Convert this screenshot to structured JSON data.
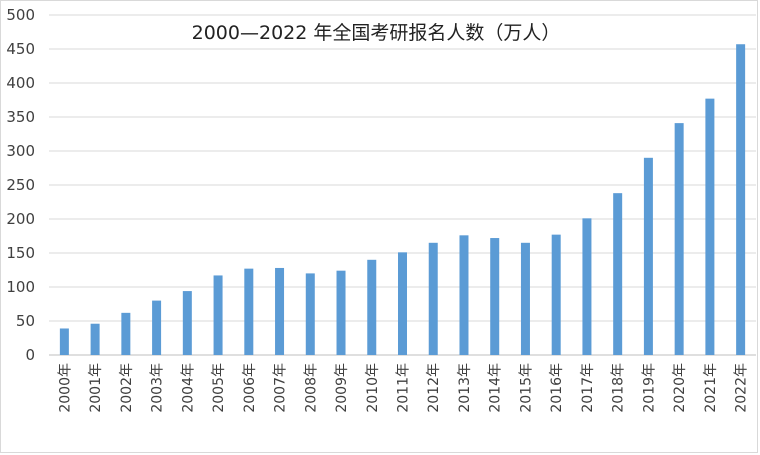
{
  "chart_data": {
    "type": "bar",
    "title": "2000—2022 年全国考研报名人数（万人）",
    "xlabel": "",
    "ylabel": "",
    "ylim": [
      0,
      500
    ],
    "yticks": [
      0,
      50,
      100,
      150,
      200,
      250,
      300,
      350,
      400,
      450,
      500
    ],
    "grid": true,
    "legend": "none",
    "bar_color": "#5b9bd5",
    "categories": [
      "2000年",
      "2001年",
      "2002年",
      "2003年",
      "2004年",
      "2005年",
      "2006年",
      "2007年",
      "2008年",
      "2009年",
      "2010年",
      "2011年",
      "2012年",
      "2013年",
      "2014年",
      "2015年",
      "2016年",
      "2017年",
      "2018年",
      "2019年",
      "2020年",
      "2021年",
      "2022年"
    ],
    "values": [
      39,
      46,
      62,
      80,
      94,
      117,
      127,
      128,
      120,
      124,
      140,
      151,
      165,
      176,
      172,
      165,
      177,
      201,
      238,
      290,
      341,
      377,
      457
    ]
  }
}
